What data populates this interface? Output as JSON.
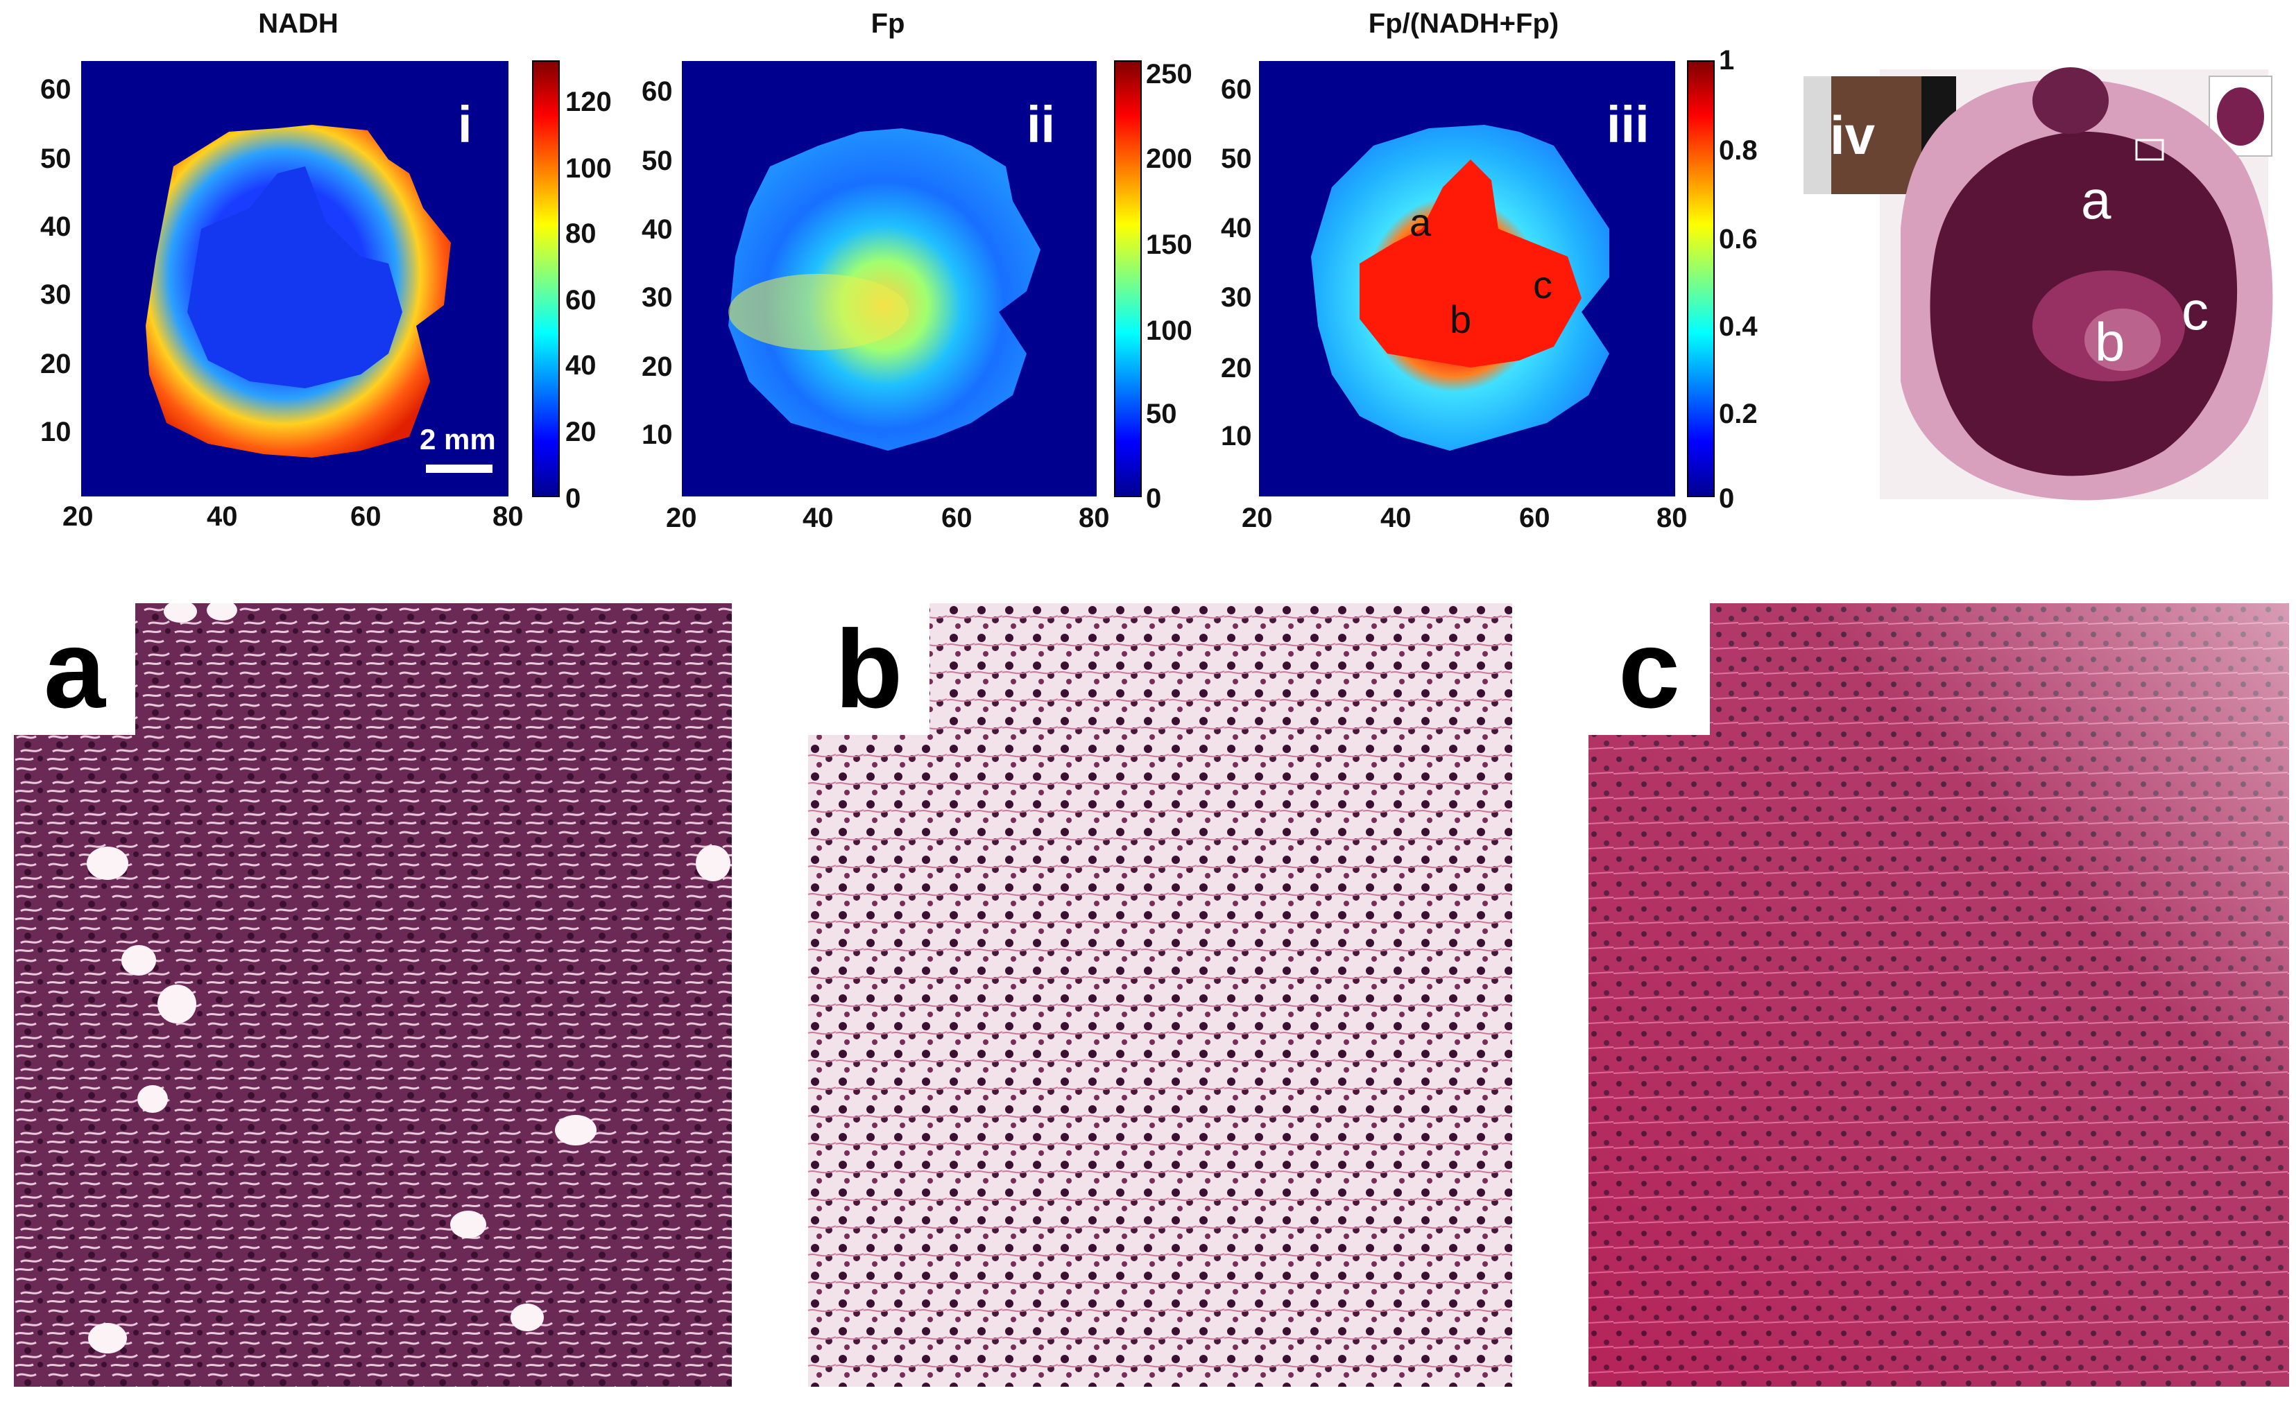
{
  "maps": [
    {
      "title": "NADH",
      "roman": "i",
      "y_ticks": [
        "60",
        "50",
        "40",
        "30",
        "20",
        "10"
      ],
      "x_ticks": [
        "20",
        "40",
        "60",
        "80"
      ],
      "colorbar_ticks": [
        "120",
        "100",
        "80",
        "60",
        "40",
        "20",
        "0"
      ],
      "scale_bar": "2 mm"
    },
    {
      "title": "Fp",
      "roman": "ii",
      "y_ticks": [
        "60",
        "50",
        "40",
        "30",
        "20",
        "10"
      ],
      "x_ticks": [
        "20",
        "40",
        "60",
        "80"
      ],
      "colorbar_ticks": [
        "250",
        "200",
        "150",
        "100",
        "50",
        "0"
      ]
    },
    {
      "title": "Fp/(NADH+Fp)",
      "roman": "iii",
      "y_ticks": [
        "60",
        "50",
        "40",
        "30",
        "20",
        "10"
      ],
      "x_ticks": [
        "20",
        "40",
        "60",
        "80"
      ],
      "colorbar_ticks": [
        "1",
        "0.8",
        "0.6",
        "0.4",
        "0.2",
        "0"
      ],
      "regions": [
        "a",
        "b",
        "c"
      ]
    }
  ],
  "histology_overview": {
    "roman": "iv",
    "regions": [
      "a",
      "b",
      "c"
    ]
  },
  "panels": [
    {
      "label": "a"
    },
    {
      "label": "b"
    },
    {
      "label": "c"
    }
  ],
  "colors": {
    "map_background": "#00008f",
    "tissue_dark": "#5a1438",
    "tissue_pink": "#a8386e",
    "tissue_light": "#e9c7d8"
  }
}
